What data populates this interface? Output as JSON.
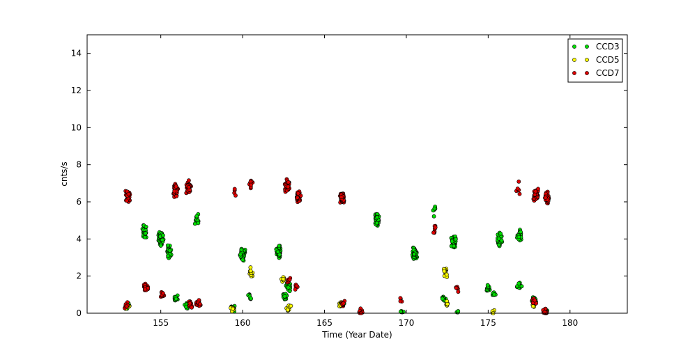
{
  "chart_data": {
    "type": "scatter",
    "title": "",
    "xlabel": "Time (Year Date)",
    "ylabel": "cnts/s",
    "xlim": [
      150.5,
      183.5
    ],
    "ylim": [
      0,
      15
    ],
    "xticks": [
      155,
      160,
      165,
      170,
      175,
      180
    ],
    "yticks": [
      0,
      2,
      4,
      6,
      8,
      10,
      12,
      14
    ],
    "grid": false,
    "legend_position": "top-right",
    "series": [
      {
        "name": "CCD3",
        "color": "#00dd00",
        "clusters": [
          {
            "x": 153.0,
            "y": 0.4,
            "n": 16
          },
          {
            "x": 154.0,
            "y": 4.4,
            "n": 40
          },
          {
            "x": 155.0,
            "y": 4.0,
            "n": 60
          },
          {
            "x": 155.5,
            "y": 3.4,
            "n": 30
          },
          {
            "x": 155.9,
            "y": 0.8,
            "n": 12
          },
          {
            "x": 156.6,
            "y": 0.4,
            "n": 16
          },
          {
            "x": 157.2,
            "y": 5.1,
            "n": 10
          },
          {
            "x": 159.4,
            "y": 0.3,
            "n": 10
          },
          {
            "x": 160.0,
            "y": 3.2,
            "n": 70
          },
          {
            "x": 160.4,
            "y": 0.9,
            "n": 8
          },
          {
            "x": 162.2,
            "y": 3.3,
            "n": 55
          },
          {
            "x": 162.6,
            "y": 0.9,
            "n": 20
          },
          {
            "x": 162.8,
            "y": 1.4,
            "n": 20
          },
          {
            "x": 166.1,
            "y": 0.5,
            "n": 12
          },
          {
            "x": 168.2,
            "y": 5.0,
            "n": 60
          },
          {
            "x": 169.7,
            "y": 0.1,
            "n": 6
          },
          {
            "x": 170.5,
            "y": 3.2,
            "n": 70
          },
          {
            "x": 171.7,
            "y": 5.5,
            "n": 6
          },
          {
            "x": 172.3,
            "y": 0.8,
            "n": 10
          },
          {
            "x": 172.9,
            "y": 3.8,
            "n": 55
          },
          {
            "x": 173.1,
            "y": 0.1,
            "n": 4
          },
          {
            "x": 175.0,
            "y": 1.3,
            "n": 20
          },
          {
            "x": 175.4,
            "y": 1.0,
            "n": 10
          },
          {
            "x": 175.7,
            "y": 4.0,
            "n": 40
          },
          {
            "x": 176.9,
            "y": 4.2,
            "n": 25
          },
          {
            "x": 176.9,
            "y": 1.5,
            "n": 12
          },
          {
            "x": 177.8,
            "y": 0.7,
            "n": 25
          },
          {
            "x": 178.5,
            "y": 0.1,
            "n": 30
          }
        ]
      },
      {
        "name": "CCD5",
        "color": "#ffff00",
        "clusters": [
          {
            "x": 153.0,
            "y": 0.3,
            "n": 4
          },
          {
            "x": 156.8,
            "y": 0.4,
            "n": 5
          },
          {
            "x": 159.4,
            "y": 0.2,
            "n": 8
          },
          {
            "x": 160.5,
            "y": 2.2,
            "n": 10
          },
          {
            "x": 162.5,
            "y": 1.8,
            "n": 8
          },
          {
            "x": 162.8,
            "y": 0.3,
            "n": 10
          },
          {
            "x": 166.0,
            "y": 0.5,
            "n": 18
          },
          {
            "x": 172.4,
            "y": 2.2,
            "n": 14
          },
          {
            "x": 172.5,
            "y": 0.5,
            "n": 6
          },
          {
            "x": 175.3,
            "y": 0.1,
            "n": 4
          },
          {
            "x": 177.8,
            "y": 0.5,
            "n": 10
          }
        ]
      },
      {
        "name": "CCD7",
        "color": "#dd0000",
        "clusters": [
          {
            "x": 153.0,
            "y": 6.3,
            "n": 40
          },
          {
            "x": 152.9,
            "y": 0.4,
            "n": 8
          },
          {
            "x": 154.1,
            "y": 1.4,
            "n": 30
          },
          {
            "x": 155.1,
            "y": 1.0,
            "n": 16
          },
          {
            "x": 155.9,
            "y": 6.6,
            "n": 30
          },
          {
            "x": 156.7,
            "y": 6.8,
            "n": 40
          },
          {
            "x": 156.8,
            "y": 0.45,
            "n": 20
          },
          {
            "x": 157.3,
            "y": 0.55,
            "n": 25
          },
          {
            "x": 159.5,
            "y": 6.6,
            "n": 4
          },
          {
            "x": 160.5,
            "y": 6.9,
            "n": 10
          },
          {
            "x": 162.7,
            "y": 6.9,
            "n": 50
          },
          {
            "x": 162.8,
            "y": 1.8,
            "n": 8
          },
          {
            "x": 163.4,
            "y": 6.3,
            "n": 40
          },
          {
            "x": 163.3,
            "y": 1.4,
            "n": 6
          },
          {
            "x": 166.1,
            "y": 6.2,
            "n": 55
          },
          {
            "x": 166.1,
            "y": 0.5,
            "n": 10
          },
          {
            "x": 167.2,
            "y": 0.05,
            "n": 12
          },
          {
            "x": 169.7,
            "y": 0.7,
            "n": 4
          },
          {
            "x": 171.7,
            "y": 4.5,
            "n": 8
          },
          {
            "x": 173.1,
            "y": 1.3,
            "n": 6
          },
          {
            "x": 176.8,
            "y": 6.7,
            "n": 6
          },
          {
            "x": 177.9,
            "y": 6.4,
            "n": 40
          },
          {
            "x": 178.6,
            "y": 6.2,
            "n": 50
          },
          {
            "x": 177.8,
            "y": 0.6,
            "n": 10
          },
          {
            "x": 178.5,
            "y": 0.1,
            "n": 12
          }
        ]
      }
    ]
  }
}
